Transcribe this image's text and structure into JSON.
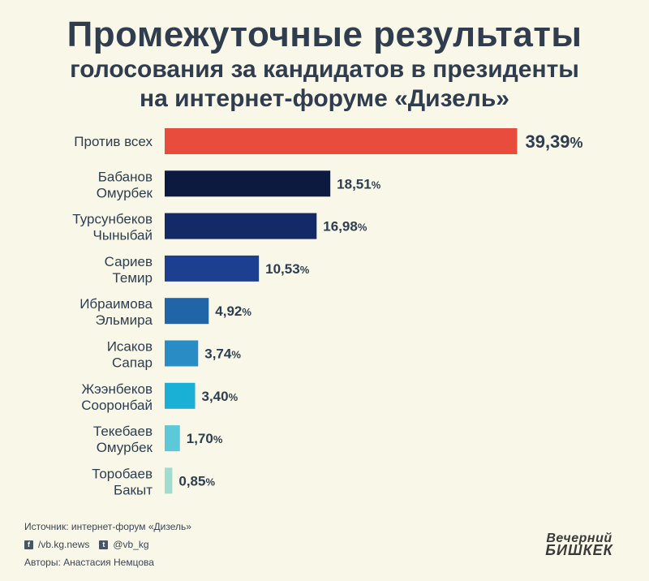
{
  "title": {
    "line1": "Промежуточные результаты",
    "line2": "голосования за кандидатов в президенты",
    "line3": "на интернет-форуме «Дизель»"
  },
  "chart_data": {
    "type": "bar",
    "orientation": "horizontal",
    "categories": [
      [
        "Против всех"
      ],
      [
        "Бабанов",
        "Омурбек"
      ],
      [
        "Турсунбеков",
        "Чыныбай"
      ],
      [
        "Сариев",
        "Темир"
      ],
      [
        "Ибраимова",
        "Эльмира"
      ],
      [
        "Исаков",
        "Сапар"
      ],
      [
        "Жээнбеков",
        "Сооронбай"
      ],
      [
        "Текебаев",
        "Омурбек"
      ],
      [
        "Торобаев",
        "Бакыт"
      ]
    ],
    "values": [
      39.39,
      18.51,
      16.98,
      10.53,
      4.92,
      3.74,
      3.4,
      1.7,
      0.85
    ],
    "value_labels": [
      "39,39",
      "18,51",
      "16,98",
      "10,53",
      "4,92",
      "3,74",
      "3,40",
      "1,70",
      "0,85"
    ],
    "unit": "%",
    "colors": [
      "#e84c3d",
      "#0d1a40",
      "#142a66",
      "#1d3f8f",
      "#2264a8",
      "#2a8cc4",
      "#1ab0d6",
      "#5cc8d8",
      "#a0dccf"
    ],
    "grid": false
  },
  "footer": {
    "source": "Источник: интернет-форум «Дизель»",
    "facebook_icon": "facebook-icon",
    "facebook": "/vb.kg.news",
    "twitter_icon": "twitter-icon",
    "twitter": "@vb_kg",
    "authors": "Авторы: Анастасия Немцова"
  },
  "logo": {
    "line1": "Вечерний",
    "line2": "БИШКЕК"
  }
}
